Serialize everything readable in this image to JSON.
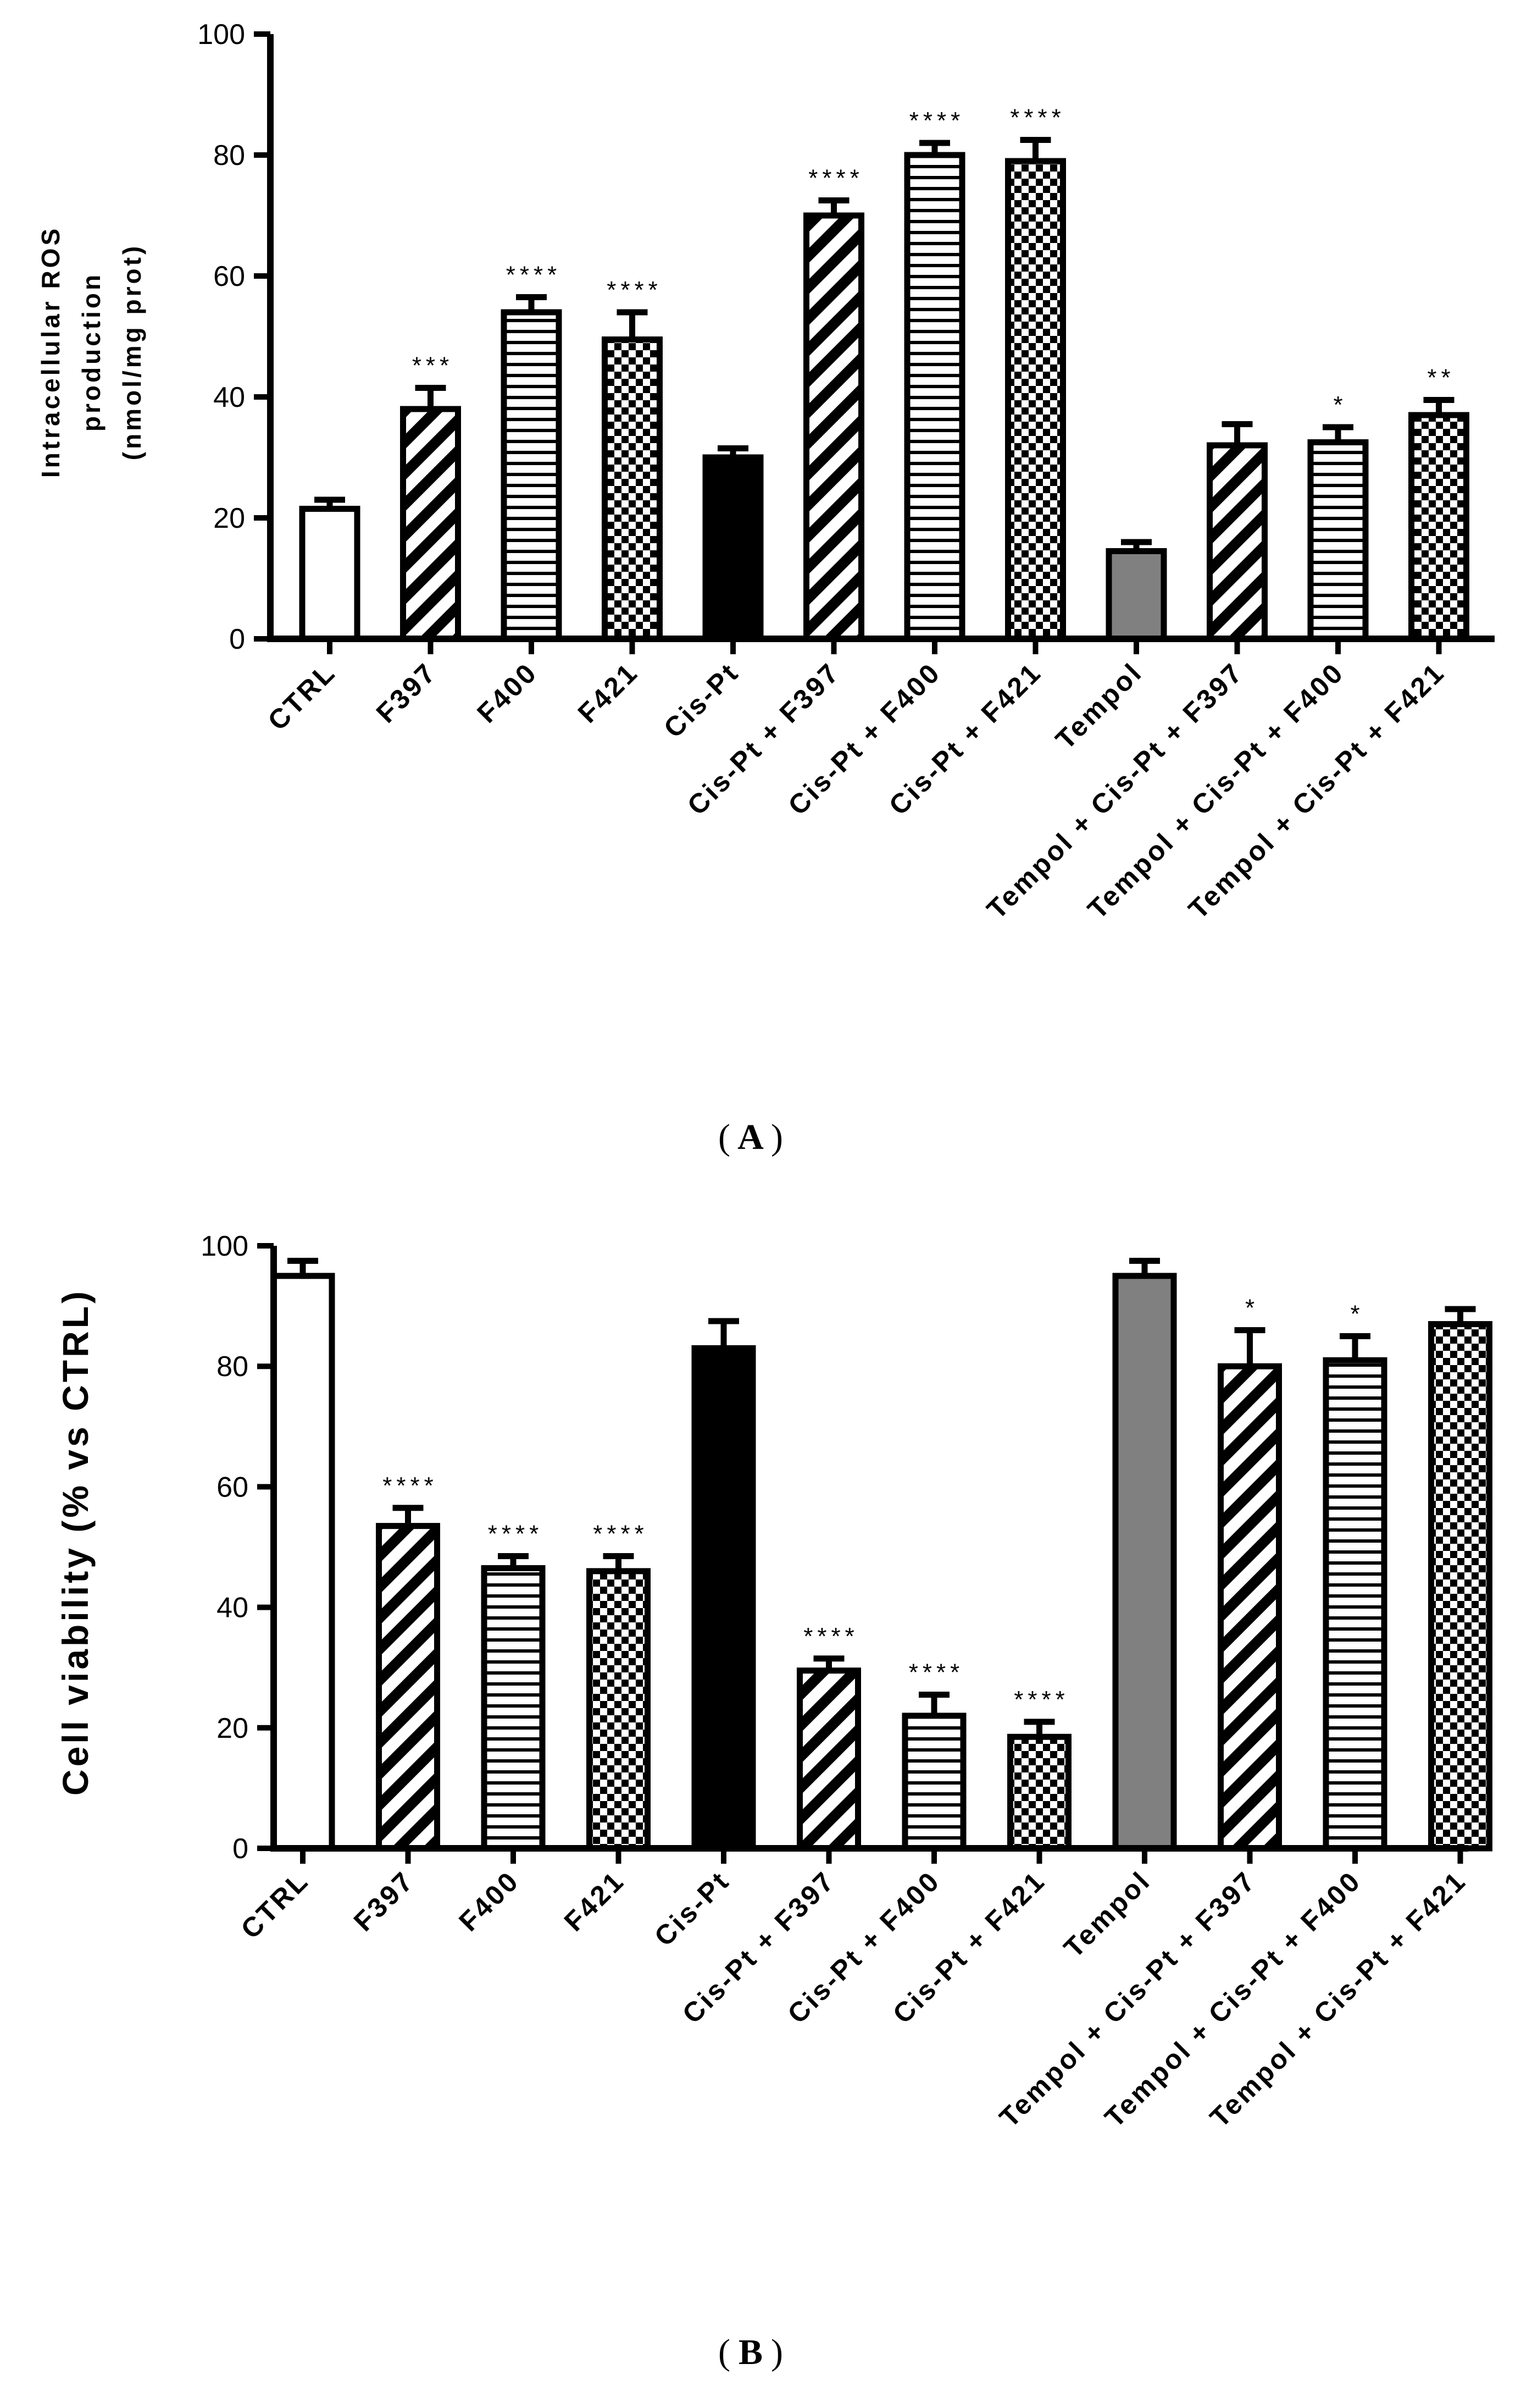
{
  "colors": {
    "ink": "#000000",
    "tempol_fill": "#808080",
    "bar_white": "#ffffff"
  },
  "chart_data": [
    {
      "type": "bar",
      "panel": "A",
      "panel_label": "A",
      "ylabel_lines": [
        "Intracellular ROS",
        "production",
        "(nmol/mg prot)"
      ],
      "ylim": [
        0,
        100
      ],
      "yticks": [
        0,
        20,
        40,
        60,
        80,
        100
      ],
      "categories": [
        "CTRL",
        "F397",
        "F400",
        "F421",
        "Cis-Pt",
        "Cis-Pt + F397",
        "Cis-Pt + F400",
        "Cis-Pt + F421",
        "Tempol",
        "Tempol + Cis-Pt + F397",
        "Tempol + Cis-Pt + F400",
        "Tempol + Cis-Pt + F421"
      ],
      "patterns": [
        "white",
        "diagonal",
        "horizontal",
        "checker",
        "black",
        "diagonal",
        "horizontal",
        "checker",
        "gray",
        "diagonal",
        "horizontal",
        "checker"
      ],
      "values": [
        21.5,
        38,
        54,
        49.5,
        30,
        70,
        80,
        79,
        14.5,
        32,
        32.5,
        37
      ],
      "errors": [
        1.5,
        3.5,
        2.5,
        4.5,
        1.5,
        2.5,
        2,
        3.5,
        1.5,
        3.5,
        2.5,
        2.5
      ],
      "significance": [
        "",
        "***",
        "****",
        "****",
        "",
        "****",
        "****",
        "****",
        "",
        "",
        "*",
        "**"
      ]
    },
    {
      "type": "bar",
      "panel": "B",
      "panel_label": "B",
      "ylabel": "Cell viability (% vs CTRL)",
      "ylim": [
        0,
        100
      ],
      "yticks": [
        0,
        20,
        40,
        60,
        80,
        100
      ],
      "categories": [
        "CTRL",
        "F397",
        "F400",
        "F421",
        "Cis-Pt",
        "Cis-Pt + F397",
        "Cis-Pt + F400",
        "Cis-Pt + F421",
        "Tempol",
        "Tempol + Cis-Pt + F397",
        "Tempol + Cis-Pt + F400",
        "Tempol + Cis-Pt + F421"
      ],
      "patterns": [
        "white",
        "diagonal",
        "horizontal",
        "checker",
        "black",
        "diagonal",
        "horizontal",
        "checker",
        "gray",
        "diagonal",
        "horizontal",
        "checker"
      ],
      "values": [
        95,
        53.5,
        46.5,
        46,
        83,
        29.5,
        22,
        18.5,
        95,
        80,
        81,
        87
      ],
      "errors": [
        2.5,
        3,
        2,
        2.5,
        4.5,
        2,
        3.5,
        2.5,
        2.5,
        6,
        4,
        2.5
      ],
      "significance": [
        "",
        "****",
        "****",
        "****",
        "",
        "****",
        "****",
        "****",
        "",
        "*",
        "*",
        ""
      ]
    }
  ]
}
